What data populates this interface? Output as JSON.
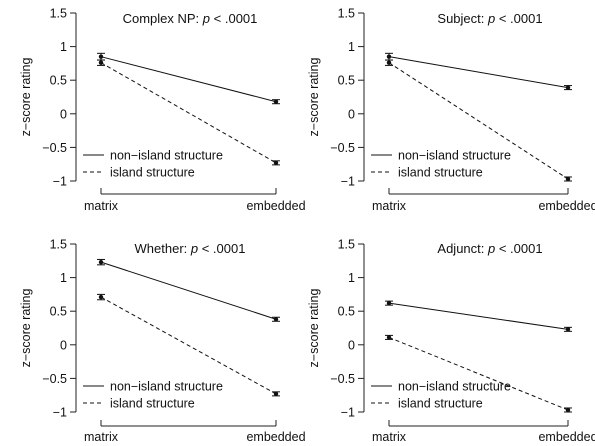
{
  "chart_data": [
    {
      "type": "line",
      "title": "Complex NP: ",
      "title_p": "p",
      "title_rest": " < .0001",
      "ylabel": "z−score rating",
      "ylim": [
        -1,
        1.5
      ],
      "yticks": [
        "−1",
        "−0.5",
        "0",
        "0.5",
        "1",
        "1.5"
      ],
      "categories": [
        "matrix",
        "embedded"
      ],
      "series": [
        {
          "name": "non−island structure",
          "style": "solid",
          "values": [
            0.85,
            0.18
          ],
          "err": [
            0.05,
            0.03
          ]
        },
        {
          "name": "island structure",
          "style": "dashed",
          "values": [
            0.76,
            -0.73
          ],
          "err": [
            0.04,
            0.03
          ]
        }
      ],
      "legend": "bottom-left"
    },
    {
      "type": "line",
      "title": "Subject: ",
      "title_p": "p",
      "title_rest": " < .0001",
      "ylabel": "z−score rating",
      "ylim": [
        -1,
        1.5
      ],
      "yticks": [
        "−1",
        "−0.5",
        "0",
        "0.5",
        "1",
        "1.5"
      ],
      "categories": [
        "matrix",
        "embedded"
      ],
      "series": [
        {
          "name": "non−island structure",
          "style": "solid",
          "values": [
            0.85,
            0.39
          ],
          "err": [
            0.05,
            0.03
          ]
        },
        {
          "name": "island structure",
          "style": "dashed",
          "values": [
            0.76,
            -0.97
          ],
          "err": [
            0.04,
            0.03
          ]
        }
      ],
      "legend": "bottom-left"
    },
    {
      "type": "line",
      "title": "Whether: ",
      "title_p": "p",
      "title_rest": " < .0001",
      "ylabel": "z−score rating",
      "ylim": [
        -1,
        1.5
      ],
      "yticks": [
        "−1",
        "−0.5",
        "0",
        "0.5",
        "1",
        "1.5"
      ],
      "categories": [
        "matrix",
        "embedded"
      ],
      "series": [
        {
          "name": "non−island structure",
          "style": "solid",
          "values": [
            1.23,
            0.38
          ],
          "err": [
            0.04,
            0.03
          ]
        },
        {
          "name": "island structure",
          "style": "dashed",
          "values": [
            0.71,
            -0.73
          ],
          "err": [
            0.04,
            0.03
          ]
        }
      ],
      "legend": "bottom-left"
    },
    {
      "type": "line",
      "title": "Adjunct: ",
      "title_p": "p",
      "title_rest": " < .0001",
      "ylabel": "z−score rating",
      "ylim": [
        -1,
        1.5
      ],
      "yticks": [
        "−1",
        "−0.5",
        "0",
        "0.5",
        "1",
        "1.5"
      ],
      "categories": [
        "matrix",
        "embedded"
      ],
      "series": [
        {
          "name": "non−island structure",
          "style": "solid",
          "values": [
            0.62,
            0.23
          ],
          "err": [
            0.03,
            0.03
          ]
        },
        {
          "name": "island structure",
          "style": "dashed",
          "values": [
            0.11,
            -0.97
          ],
          "err": [
            0.03,
            0.03
          ]
        }
      ],
      "legend": "bottom-left"
    }
  ]
}
